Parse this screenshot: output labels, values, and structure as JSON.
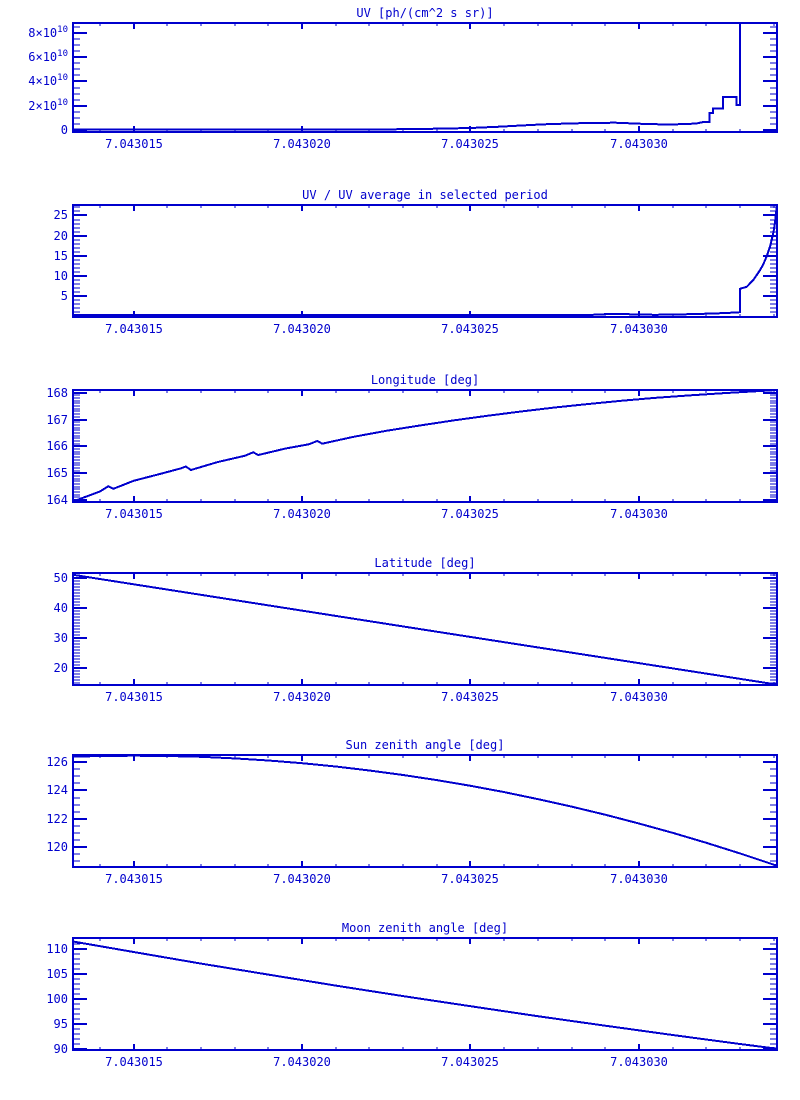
{
  "background": "#ffffff",
  "plot_color": "#0000CD",
  "chart_data": [
    {
      "id": "uv",
      "type": "line",
      "title": "UV [ph/(cm^2 s sr)]",
      "xlabel": "",
      "ylabel": "",
      "xlim": [
        7.0430132,
        7.0430341
      ],
      "ylim": [
        -1500000000.0,
        88000000000.0
      ],
      "grid": false,
      "legend": "none",
      "x_ticks": [
        {
          "value": 7.043015,
          "label": "7.043015"
        },
        {
          "value": 7.04302,
          "label": "7.043020"
        },
        {
          "value": 7.043025,
          "label": "7.043025"
        },
        {
          "value": 7.04303,
          "label": "7.043030"
        }
      ],
      "x_minor_step": 1e-06,
      "y_ticks": [
        {
          "value": 0,
          "label": "0"
        },
        {
          "value": 20000000000.0,
          "label": "2×10",
          "exp": "10"
        },
        {
          "value": 40000000000.0,
          "label": "4×10",
          "exp": "10"
        },
        {
          "value": 60000000000.0,
          "label": "6×10",
          "exp": "10"
        },
        {
          "value": 80000000000.0,
          "label": "8×10",
          "exp": "10"
        }
      ],
      "y_minor_step": 5000000000.0,
      "points": [
        [
          7.0430132,
          500000000.0
        ],
        [
          7.0430215,
          500000000.0
        ],
        [
          7.043023,
          800000000.0
        ],
        [
          7.043024,
          1200000000.0
        ],
        [
          7.043025,
          1800000000.0
        ],
        [
          7.0430258,
          2800000000.0
        ],
        [
          7.0430265,
          3800000000.0
        ],
        [
          7.0430272,
          4800000000.0
        ],
        [
          7.043028,
          5600000000.0
        ],
        [
          7.0430287,
          6000000000.0
        ],
        [
          7.0430293,
          6100000000.0
        ],
        [
          7.0430298,
          5600000000.0
        ],
        [
          7.0430303,
          5000000000.0
        ],
        [
          7.0430308,
          4700000000.0
        ],
        [
          7.0430313,
          4900000000.0
        ],
        [
          7.0430317,
          5500000000.0
        ],
        [
          7.0430319,
          6600000000.0
        ],
        [
          7.0430321,
          6600000000.0
        ],
        [
          7.0430321,
          14000000000.0
        ],
        [
          7.0430322,
          14000000000.0
        ],
        [
          7.0430322,
          18000000000.0
        ],
        [
          7.0430325,
          18000000000.0
        ],
        [
          7.0430325,
          27200000000.0
        ],
        [
          7.0430329,
          27200000000.0
        ],
        [
          7.0430329,
          20600000000.0
        ],
        [
          7.043033,
          20600000000.0
        ],
        [
          7.043033,
          88000000000.0
        ],
        [
          7.0430341,
          88000000000.0
        ]
      ]
    },
    {
      "id": "uv-ratio",
      "type": "line",
      "title": "UV / UV average in selected period",
      "xlabel": "",
      "ylabel": "",
      "xlim": [
        7.0430132,
        7.0430341
      ],
      "ylim": [
        -0.2,
        27.6
      ],
      "grid": false,
      "legend": "none",
      "x_ticks": [
        {
          "value": 7.043015,
          "label": "7.043015"
        },
        {
          "value": 7.04302,
          "label": "7.043020"
        },
        {
          "value": 7.043025,
          "label": "7.043025"
        },
        {
          "value": 7.04303,
          "label": "7.043030"
        }
      ],
      "x_minor_step": 1e-06,
      "y_ticks": [
        {
          "value": 5,
          "label": "5"
        },
        {
          "value": 10,
          "label": "10"
        },
        {
          "value": 15,
          "label": "15"
        },
        {
          "value": 20,
          "label": "20"
        },
        {
          "value": 25,
          "label": "25"
        }
      ],
      "y_minor_step": 1,
      "points": [
        [
          7.0430132,
          0.3
        ],
        [
          7.0430285,
          0.3
        ],
        [
          7.043029,
          0.5
        ],
        [
          7.0430295,
          0.55
        ],
        [
          7.04303,
          0.4
        ],
        [
          7.0430305,
          0.35
        ],
        [
          7.0430315,
          0.5
        ],
        [
          7.0430323,
          0.7
        ],
        [
          7.0430327,
          0.85
        ],
        [
          7.043033,
          1.0
        ],
        [
          7.043033,
          6.8
        ],
        [
          7.0430332,
          7.3
        ],
        [
          7.0430334,
          9.0
        ],
        [
          7.0430336,
          11.5
        ],
        [
          7.0430337,
          13.0
        ],
        [
          7.0430338,
          15.0
        ],
        [
          7.0430339,
          17.5
        ],
        [
          7.043034,
          21.0
        ],
        [
          7.04303405,
          24.0
        ],
        [
          7.0430341,
          27.6
        ]
      ]
    },
    {
      "id": "longitude",
      "type": "line",
      "title": "Longitude [deg]",
      "xlabel": "",
      "ylabel": "",
      "xlim": [
        7.0430132,
        7.0430341
      ],
      "ylim": [
        163.93,
        168.1
      ],
      "grid": false,
      "legend": "none",
      "x_ticks": [
        {
          "value": 7.043015,
          "label": "7.043015"
        },
        {
          "value": 7.04302,
          "label": "7.043020"
        },
        {
          "value": 7.043025,
          "label": "7.043025"
        },
        {
          "value": 7.04303,
          "label": "7.043030"
        }
      ],
      "x_minor_step": 1e-06,
      "y_ticks": [
        {
          "value": 164,
          "label": "164"
        },
        {
          "value": 165,
          "label": "165"
        },
        {
          "value": 166,
          "label": "166"
        },
        {
          "value": 167,
          "label": "167"
        },
        {
          "value": 168,
          "label": "168"
        }
      ],
      "y_minor_step": 0.1,
      "points": [
        [
          7.0430132,
          163.95
        ],
        [
          7.043014,
          164.32
        ],
        [
          7.04301425,
          164.52
        ],
        [
          7.0430144,
          164.42
        ],
        [
          7.043015,
          164.72
        ],
        [
          7.0430158,
          164.98
        ],
        [
          7.0430164,
          165.18
        ],
        [
          7.04301655,
          165.25
        ],
        [
          7.0430167,
          165.12
        ],
        [
          7.0430175,
          165.42
        ],
        [
          7.0430183,
          165.65
        ],
        [
          7.04301855,
          165.78
        ],
        [
          7.0430187,
          165.68
        ],
        [
          7.0430195,
          165.92
        ],
        [
          7.0430202,
          166.08
        ],
        [
          7.04302045,
          166.2
        ],
        [
          7.0430206,
          166.1
        ],
        [
          7.0430215,
          166.35
        ],
        [
          7.0430225,
          166.58
        ],
        [
          7.0430235,
          166.78
        ],
        [
          7.0430245,
          166.97
        ],
        [
          7.0430255,
          167.14
        ],
        [
          7.0430265,
          167.3
        ],
        [
          7.0430275,
          167.45
        ],
        [
          7.0430285,
          167.58
        ],
        [
          7.0430295,
          167.7
        ],
        [
          7.0430305,
          167.81
        ],
        [
          7.0430315,
          167.9
        ],
        [
          7.0430325,
          167.98
        ],
        [
          7.0430333,
          168.04
        ],
        [
          7.0430341,
          168.1
        ]
      ]
    },
    {
      "id": "latitude",
      "type": "line",
      "title": "Latitude [deg]",
      "xlabel": "",
      "ylabel": "",
      "xlim": [
        7.0430132,
        7.0430341
      ],
      "ylim": [
        14.3,
        51.7
      ],
      "grid": false,
      "legend": "none",
      "x_ticks": [
        {
          "value": 7.043015,
          "label": "7.043015"
        },
        {
          "value": 7.04302,
          "label": "7.043020"
        },
        {
          "value": 7.043025,
          "label": "7.043025"
        },
        {
          "value": 7.04303,
          "label": "7.043030"
        }
      ],
      "x_minor_step": 1e-06,
      "y_ticks": [
        {
          "value": 20,
          "label": "20"
        },
        {
          "value": 30,
          "label": "30"
        },
        {
          "value": 40,
          "label": "40"
        },
        {
          "value": 50,
          "label": "50"
        }
      ],
      "y_minor_step": 1,
      "points": [
        [
          7.0430132,
          51.1
        ],
        [
          7.0430236,
          32.8
        ],
        [
          7.0430341,
          14.45
        ]
      ]
    },
    {
      "id": "sun-zenith",
      "type": "line",
      "title": "Sun zenith angle [deg]",
      "xlabel": "",
      "ylabel": "",
      "xlim": [
        7.0430132,
        7.0430341
      ],
      "ylim": [
        118.6,
        126.5
      ],
      "grid": false,
      "legend": "none",
      "x_ticks": [
        {
          "value": 7.043015,
          "label": "7.043015"
        },
        {
          "value": 7.04302,
          "label": "7.043020"
        },
        {
          "value": 7.043025,
          "label": "7.043025"
        },
        {
          "value": 7.04303,
          "label": "7.043030"
        }
      ],
      "x_minor_step": 1e-06,
      "y_ticks": [
        {
          "value": 120,
          "label": "120"
        },
        {
          "value": 122,
          "label": "122"
        },
        {
          "value": 124,
          "label": "124"
        },
        {
          "value": 126,
          "label": "126"
        }
      ],
      "y_minor_step": 0.5,
      "points": [
        [
          7.0430132,
          126.38
        ],
        [
          7.043014,
          126.43
        ],
        [
          7.043015,
          126.45
        ],
        [
          7.043016,
          126.43
        ],
        [
          7.043017,
          126.37
        ],
        [
          7.043018,
          126.26
        ],
        [
          7.043019,
          126.11
        ],
        [
          7.04302,
          125.92
        ],
        [
          7.043021,
          125.69
        ],
        [
          7.043022,
          125.41
        ],
        [
          7.043023,
          125.09
        ],
        [
          7.043024,
          124.73
        ],
        [
          7.043025,
          124.33
        ],
        [
          7.043026,
          123.88
        ],
        [
          7.043027,
          123.39
        ],
        [
          7.043028,
          122.86
        ],
        [
          7.043029,
          122.29
        ],
        [
          7.04303,
          121.67
        ],
        [
          7.043031,
          121.01
        ],
        [
          7.043032,
          120.31
        ],
        [
          7.043033,
          119.56
        ],
        [
          7.043034,
          118.77
        ],
        [
          7.0430341,
          118.69
        ]
      ]
    },
    {
      "id": "moon-zenith",
      "type": "line",
      "title": "Moon zenith angle [deg]",
      "xlabel": "",
      "ylabel": "",
      "xlim": [
        7.0430132,
        7.0430341
      ],
      "ylim": [
        89.75,
        112.1
      ],
      "grid": false,
      "legend": "none",
      "x_ticks": [
        {
          "value": 7.043015,
          "label": "7.043015"
        },
        {
          "value": 7.04302,
          "label": "7.043020"
        },
        {
          "value": 7.043025,
          "label": "7.043025"
        },
        {
          "value": 7.04303,
          "label": "7.043030"
        }
      ],
      "x_minor_step": 1e-06,
      "y_ticks": [
        {
          "value": 90,
          "label": "90"
        },
        {
          "value": 95,
          "label": "95"
        },
        {
          "value": 100,
          "label": "100"
        },
        {
          "value": 105,
          "label": "105"
        },
        {
          "value": 110,
          "label": "110"
        }
      ],
      "y_minor_step": 1,
      "points": [
        [
          7.0430132,
          111.4
        ],
        [
          7.043015,
          109.3
        ],
        [
          7.043017,
          107.0
        ],
        [
          7.043019,
          104.8
        ],
        [
          7.043021,
          102.6
        ],
        [
          7.043023,
          100.5
        ],
        [
          7.043025,
          98.5
        ],
        [
          7.043027,
          96.5
        ],
        [
          7.043029,
          94.6
        ],
        [
          7.043031,
          92.75
        ],
        [
          7.043033,
          90.95
        ],
        [
          7.0430341,
          90.0
        ]
      ]
    }
  ]
}
